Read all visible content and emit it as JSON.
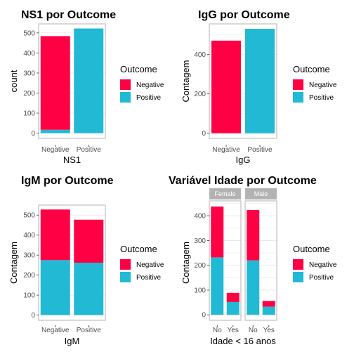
{
  "colors": {
    "negative": "#ff0044",
    "positive": "#22b9d4",
    "grid": "#e6e6e6",
    "strip": "#b3b3b3",
    "frame": "#b3b3b3"
  },
  "legend": {
    "title": "Outcome",
    "items": [
      "Negative",
      "Positive"
    ]
  },
  "chart_data": [
    {
      "type": "bar",
      "stacked": true,
      "title": "NS1 por Outcome",
      "xlabel": "NS1",
      "ylabel": "count",
      "categories": [
        "Negative",
        "Positive"
      ],
      "yticks": [
        0,
        100,
        200,
        300,
        400,
        500
      ],
      "ylim": [
        -26,
        545
      ],
      "series": [
        {
          "name": "Negative",
          "values": [
            467,
            0
          ]
        },
        {
          "name": "Positive",
          "values": [
            17,
            522
          ]
        }
      ]
    },
    {
      "type": "bar",
      "stacked": true,
      "title": "IgG por Outcome",
      "xlabel": "IgG",
      "ylabel": "Contagem",
      "categories": [
        "Negative",
        "Positive"
      ],
      "yticks": [
        0,
        200,
        400
      ],
      "ylim": [
        -26,
        555
      ],
      "series": [
        {
          "name": "Negative",
          "values": [
            470,
            0
          ]
        },
        {
          "name": "Positive",
          "values": [
            0,
            530
          ]
        }
      ]
    },
    {
      "type": "bar",
      "stacked": true,
      "title": "IgM por Outcome",
      "xlabel": "IgM",
      "ylabel": "Contagem",
      "categories": [
        "Negative",
        "Positive"
      ],
      "yticks": [
        0,
        100,
        200,
        300,
        400,
        500
      ],
      "ylim": [
        -26,
        550
      ],
      "series": [
        {
          "name": "Negative",
          "values": [
            253,
            215
          ]
        },
        {
          "name": "Positive",
          "values": [
            275,
            262
          ]
        }
      ]
    },
    {
      "type": "bar",
      "stacked": true,
      "facets": true,
      "title": "Variável Idade por Outcome",
      "xlabel": "Idade < 16 anos",
      "ylabel": "Contagem",
      "facet_labels": [
        "Female",
        "Male"
      ],
      "categories": [
        "No",
        "Yes"
      ],
      "yticks": [
        0,
        100,
        200,
        300,
        400
      ],
      "ylim": [
        -22,
        460
      ],
      "facet_series": [
        [
          {
            "name": "Negative",
            "values": [
              205,
              37
            ]
          },
          {
            "name": "Positive",
            "values": [
              232,
              52
            ]
          }
        ],
        [
          {
            "name": "Negative",
            "values": [
              203,
              23
            ]
          },
          {
            "name": "Positive",
            "values": [
              220,
              33
            ]
          }
        ]
      ]
    }
  ]
}
